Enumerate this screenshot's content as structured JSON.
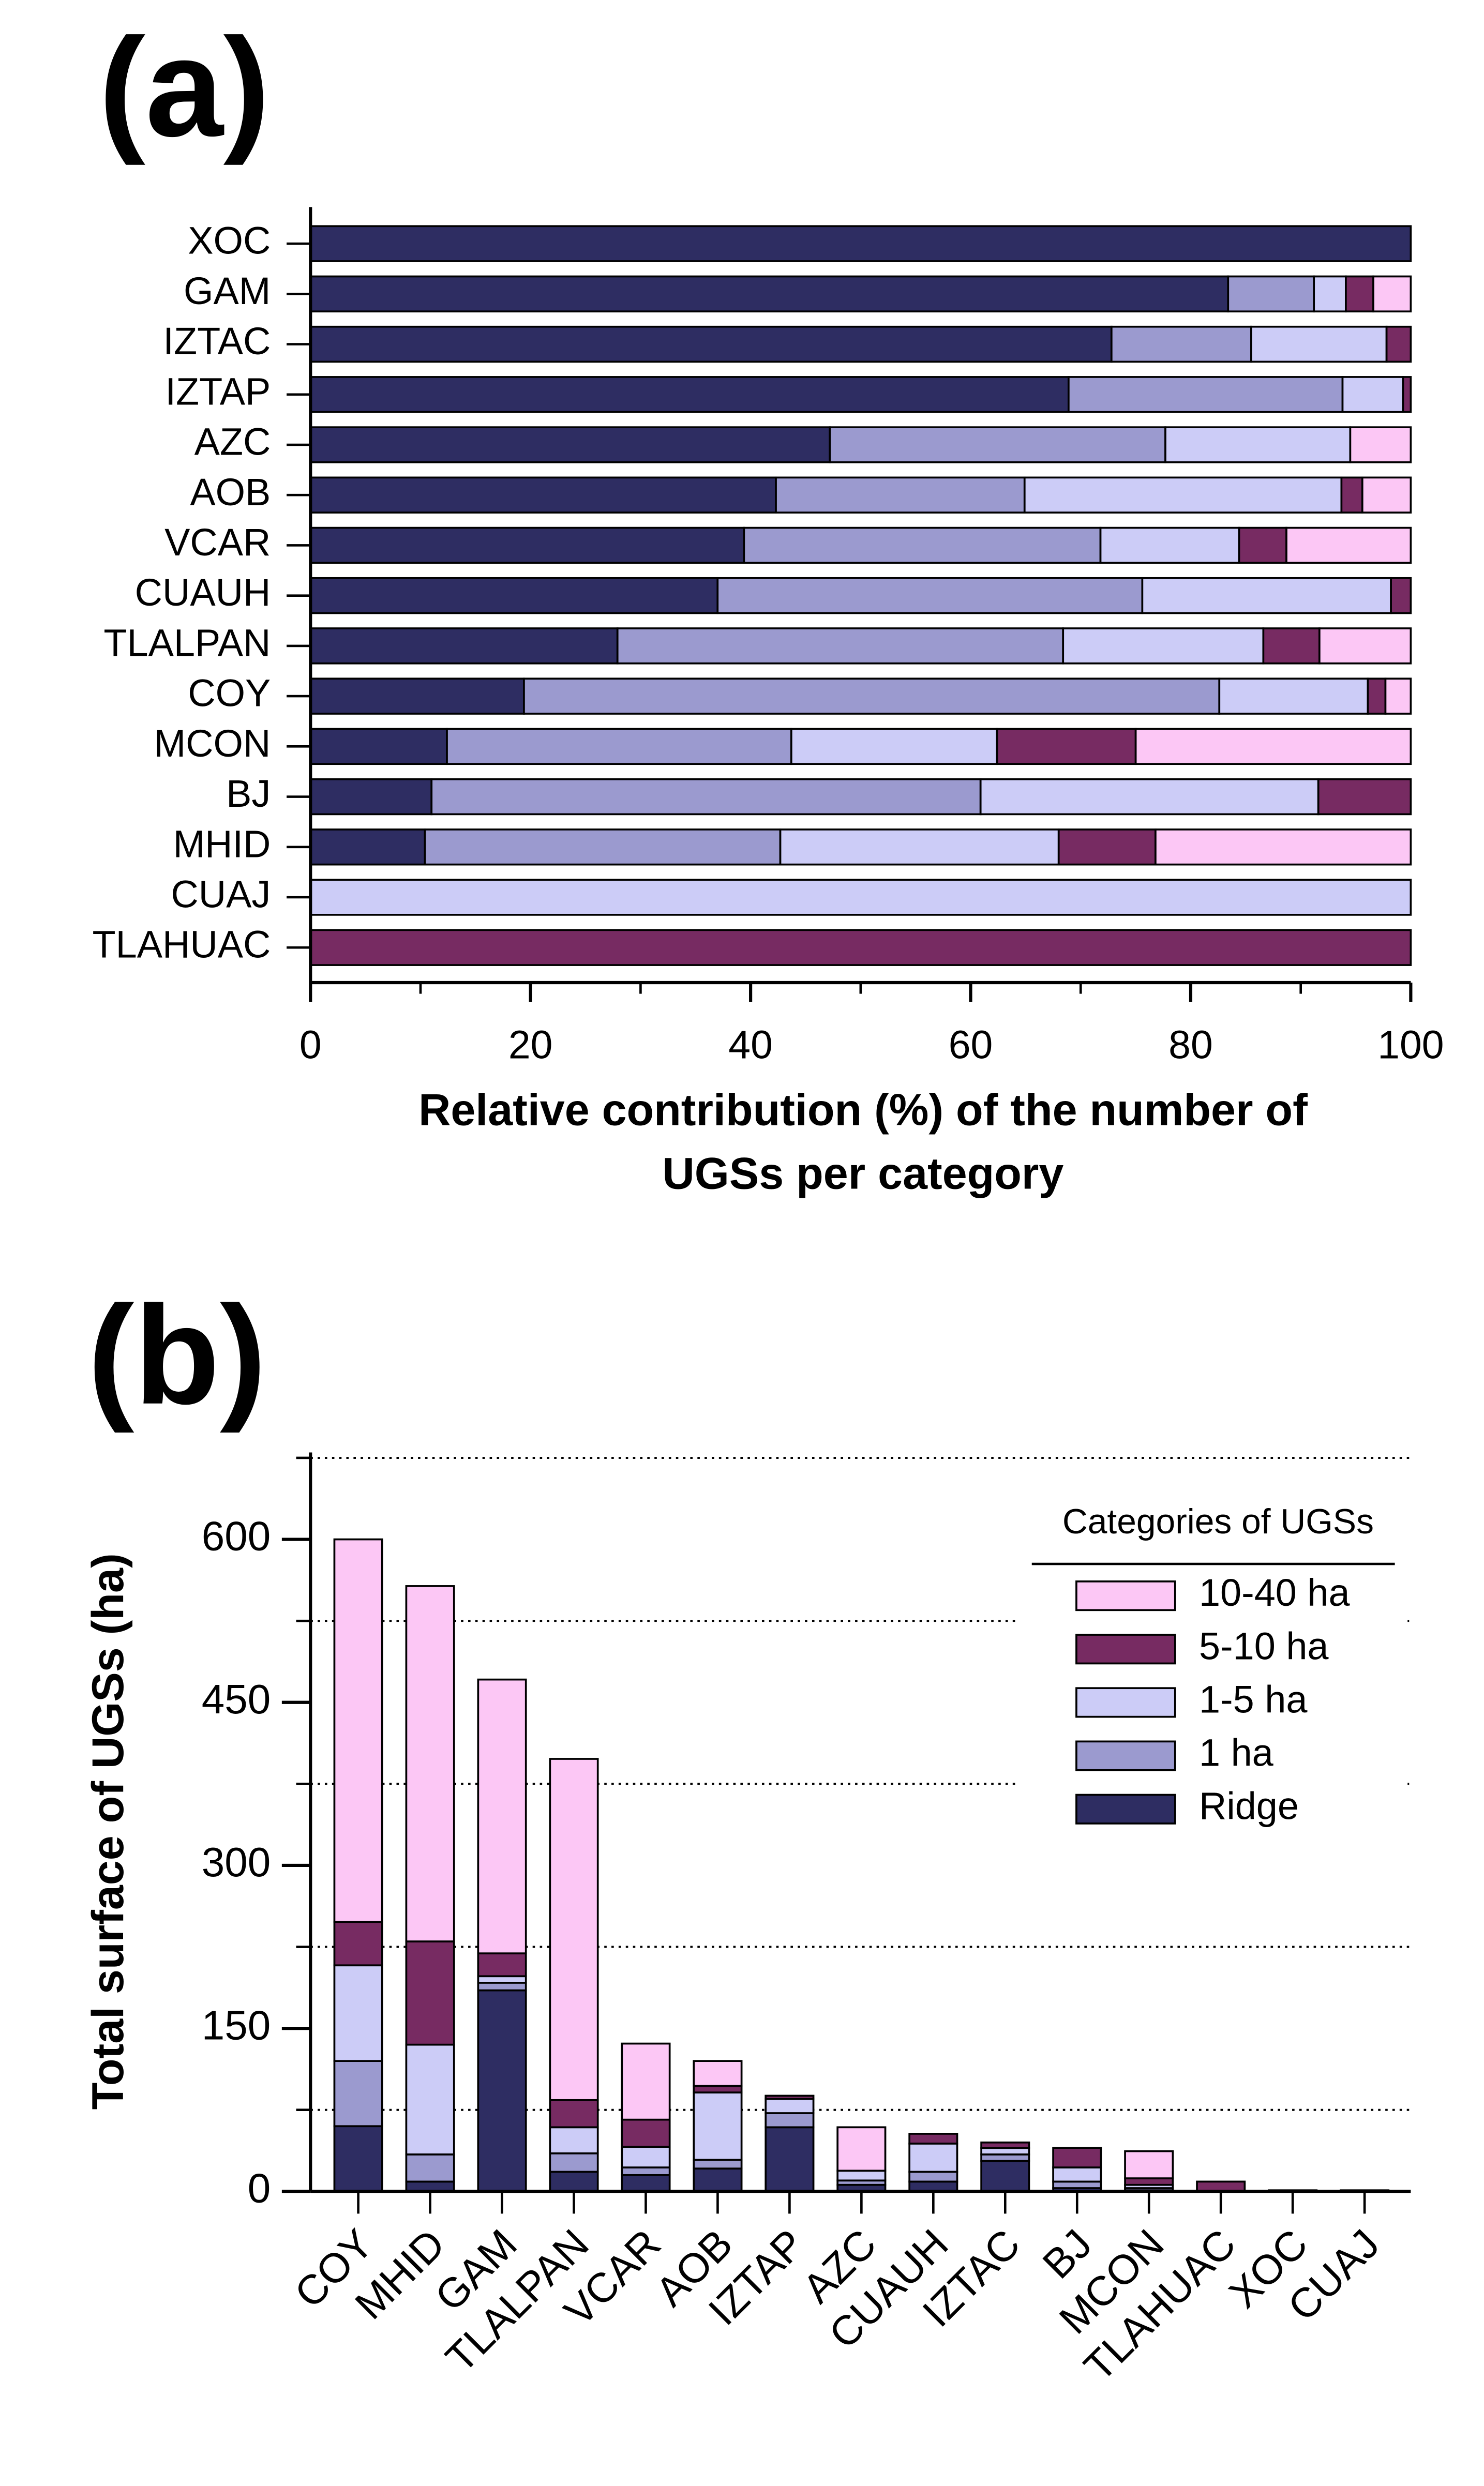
{
  "chart_data": [
    {
      "type": "stacked_barh",
      "panel_label": "(a)",
      "xlabel": [
        "Relative contribution (%) of the number of",
        "UGSs per category"
      ],
      "categories": [
        "XOC",
        "GAM",
        "IZTAC",
        "IZTAP",
        "AZC",
        "AOB",
        "VCAR",
        "CUAUH",
        "TLALPAN",
        "COY",
        "MCON",
        "BJ",
        "MHID",
        "CUAJ",
        "TLAHUAC"
      ],
      "series": [
        {
          "color": "#2e2d62",
          "values": [
            100,
            83.4,
            72.8,
            68.9,
            47.2,
            42.3,
            39.4,
            37.0,
            27.9,
            19.4,
            12.4,
            11.0,
            10.4,
            0,
            0
          ]
        },
        {
          "color": "#9b9acf",
          "values": [
            0,
            7.8,
            12.7,
            24.9,
            30.5,
            22.6,
            32.4,
            38.6,
            40.5,
            63.2,
            31.3,
            49.9,
            32.3,
            0,
            0
          ]
        },
        {
          "color": "#ccccf7",
          "values": [
            0,
            2.9,
            12.3,
            5.5,
            16.8,
            28.8,
            12.6,
            22.6,
            18.2,
            13.5,
            18.7,
            30.7,
            25.3,
            100,
            0
          ]
        },
        {
          "color": "#772b62",
          "values": [
            0,
            2.5,
            2.2,
            0.7,
            0,
            1.9,
            4.3,
            1.8,
            5.1,
            1.6,
            12.6,
            8.4,
            8.8,
            0,
            100
          ]
        },
        {
          "color": "#fcc7f5",
          "values": [
            0,
            3.4,
            0,
            0,
            5.5,
            4.4,
            11.3,
            0,
            8.3,
            2.3,
            25.0,
            0,
            23.2,
            0,
            0
          ]
        }
      ],
      "xlim": [
        0,
        100
      ],
      "xticks": [
        0,
        20,
        40,
        60,
        80,
        100
      ],
      "xminorticks": [
        10,
        30,
        50,
        70,
        90
      ]
    },
    {
      "type": "stacked_bar",
      "panel_label": "(b)",
      "ylabel": "Total surface of UGSs (ha)",
      "categories": [
        "COY",
        "MHID",
        "GAM",
        "TLALPAN",
        "VCAR",
        "AOB",
        "IZTAP",
        "AZC",
        "CUAUH",
        "IZTAC",
        "BJ",
        "MCON",
        "TLAHUAC",
        "XOC",
        "CUAJ"
      ],
      "series": [
        {
          "name": "Ridge",
          "color": "#2e2d62",
          "values": [
            60,
            9,
            185,
            18,
            15,
            21,
            59,
            6,
            9,
            28,
            3,
            1,
            0,
            1,
            0
          ]
        },
        {
          "name": "1 ha",
          "color": "#9b9acf",
          "values": [
            60,
            25,
            7,
            17,
            7,
            8,
            13,
            4,
            9,
            6,
            6,
            2,
            0,
            0,
            0
          ]
        },
        {
          "name": "1-5 ha",
          "color": "#ccccf7",
          "values": [
            88,
            101,
            6,
            24,
            19,
            62,
            13,
            9,
            26,
            6,
            13,
            3,
            0,
            0,
            1
          ]
        },
        {
          "name": "5-10 ha",
          "color": "#772b62",
          "values": [
            40,
            95,
            21,
            25,
            25,
            6,
            3,
            0,
            9,
            5,
            18,
            6,
            9,
            0,
            0
          ]
        },
        {
          "name": "10-40 ha",
          "color": "#fcc7f5",
          "values": [
            352,
            327,
            252,
            314,
            70,
            23,
            0,
            40,
            0,
            0,
            0,
            25,
            0,
            0,
            0
          ]
        }
      ],
      "ylim": [
        0,
        680
      ],
      "yticks": [
        0,
        150,
        300,
        450,
        600
      ],
      "yminorticks": [
        75,
        225,
        375,
        525,
        675
      ],
      "grid": true,
      "legend": {
        "title": "Categories of UGSs",
        "loc": "upper right"
      }
    }
  ]
}
